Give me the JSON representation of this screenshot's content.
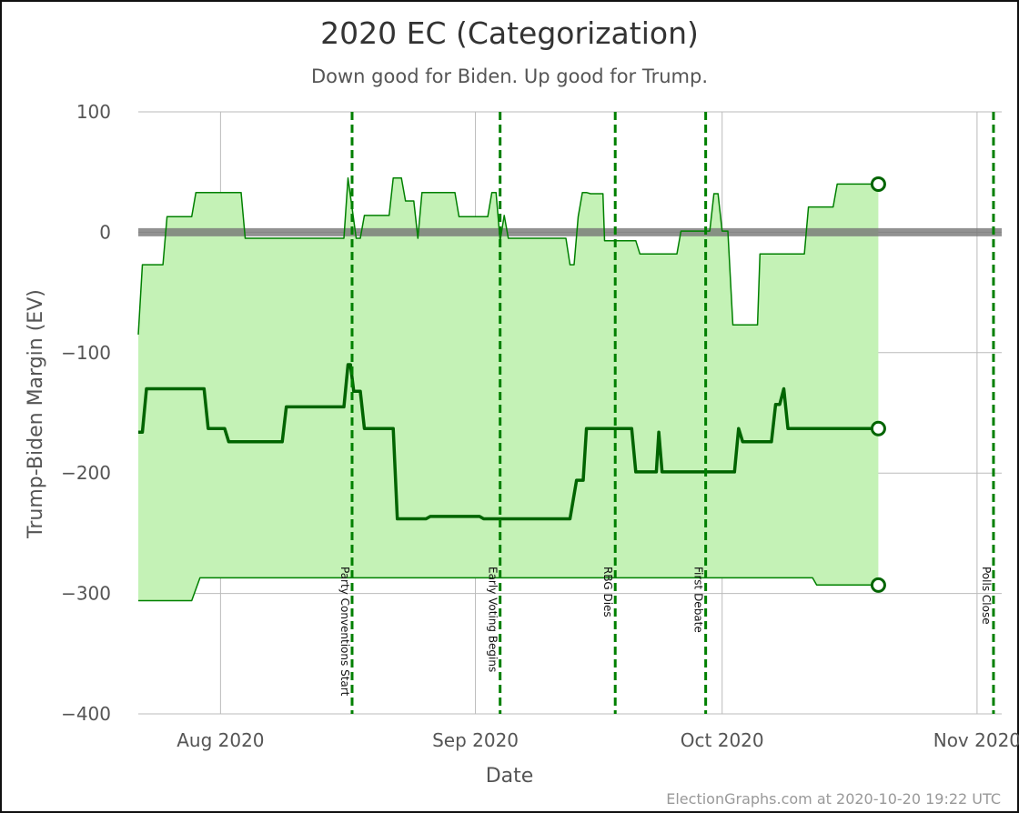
{
  "chart_data": {
    "type": "line",
    "title": "2020 EC (Categorization)",
    "subtitle": "Down good for Biden. Up good for Trump.",
    "xlabel": "Date",
    "ylabel": "Trump-Biden Margin (EV)",
    "ylim": [
      -400,
      100
    ],
    "xlim": [
      "2020-07-22",
      "2020-11-04"
    ],
    "y_ticks": [
      {
        "value": 100,
        "label": "100"
      },
      {
        "value": 0,
        "label": "0"
      },
      {
        "value": -100,
        "label": "-100"
      },
      {
        "value": -200,
        "label": "-200"
      },
      {
        "value": -300,
        "label": "-300"
      },
      {
        "value": -400,
        "label": "-400"
      }
    ],
    "x_ticks": [
      {
        "date": "2020-08-01",
        "label": "Aug 2020"
      },
      {
        "date": "2020-09-01",
        "label": "Sep 2020"
      },
      {
        "date": "2020-10-01",
        "label": "Oct 2020"
      },
      {
        "date": "2020-11-01",
        "label": "Nov 2020"
      }
    ],
    "grid": true,
    "zero_line": 0,
    "events": [
      {
        "date": "2020-08-17",
        "label": "Party Conventions Start"
      },
      {
        "date": "2020-09-04",
        "label": "Early Voting Begins"
      },
      {
        "date": "2020-09-18",
        "label": "RBG Dies"
      },
      {
        "date": "2020-09-29",
        "label": "First Debate"
      },
      {
        "date": "2020-11-03",
        "label": "Polls Close"
      }
    ],
    "series": [
      {
        "role": "upper",
        "points": [
          [
            "2020-07-22",
            -85
          ],
          [
            "2020-07-22.5",
            -27
          ],
          [
            "2020-07-25",
            -27
          ],
          [
            "2020-07-25.5",
            13
          ],
          [
            "2020-07-28.5",
            13
          ],
          [
            "2020-07-29",
            33
          ],
          [
            "2020-08-03.5",
            33
          ],
          [
            "2020-08-04",
            -5
          ],
          [
            "2020-08-16",
            -5
          ],
          [
            "2020-08-16.5",
            45
          ],
          [
            "2020-08-17",
            20
          ],
          [
            "2020-08-17.5",
            -5
          ],
          [
            "2020-08-18",
            -5
          ],
          [
            "2020-08-18.5",
            14
          ],
          [
            "2020-08-21.5",
            14
          ],
          [
            "2020-08-22",
            45
          ],
          [
            "2020-08-23",
            45
          ],
          [
            "2020-08-23.5",
            26
          ],
          [
            "2020-08-24.5",
            26
          ],
          [
            "2020-08-25",
            -5
          ],
          [
            "2020-08-25.5",
            33
          ],
          [
            "2020-08-29.5",
            33
          ],
          [
            "2020-08-30",
            13
          ],
          [
            "2020-09-02.5",
            13
          ],
          [
            "2020-09-03",
            33
          ],
          [
            "2020-09-03.5",
            33
          ],
          [
            "2020-09-04",
            -7
          ],
          [
            "2020-09-04.5",
            14
          ],
          [
            "2020-09-05",
            -5
          ],
          [
            "2020-09-12",
            -5
          ],
          [
            "2020-09-12.5",
            -27
          ],
          [
            "2020-09-13",
            -27
          ],
          [
            "2020-09-13.5",
            13
          ],
          [
            "2020-09-14",
            33
          ],
          [
            "2020-09-14.5",
            33
          ],
          [
            "2020-09-15",
            32
          ],
          [
            "2020-09-16.5",
            32
          ],
          [
            "2020-09-16.7",
            -7
          ],
          [
            "2020-09-20.5",
            -7
          ],
          [
            "2020-09-21",
            -18
          ],
          [
            "2020-09-25.5",
            -18
          ],
          [
            "2020-09-26",
            1
          ],
          [
            "2020-09-29.5",
            1
          ],
          [
            "2020-09-30",
            32
          ],
          [
            "2020-09-30.5",
            32
          ],
          [
            "2020-10-01",
            1
          ],
          [
            "2020-10-01.7",
            1
          ],
          [
            "2020-10-02.3",
            -77
          ],
          [
            "2020-10-05.3",
            -77
          ],
          [
            "2020-10-05.6",
            -18
          ],
          [
            "2020-10-11",
            -18
          ],
          [
            "2020-10-11.5",
            21
          ],
          [
            "2020-10-14.5",
            21
          ],
          [
            "2020-10-15",
            40
          ],
          [
            "2020-10-20",
            40
          ]
        ]
      },
      {
        "role": "median",
        "points": [
          [
            "2020-07-22",
            -166
          ],
          [
            "2020-07-22.5",
            -166
          ],
          [
            "2020-07-23",
            -130
          ],
          [
            "2020-07-30",
            -130
          ],
          [
            "2020-07-30.5",
            -163
          ],
          [
            "2020-08-01.5",
            -163
          ],
          [
            "2020-08-02",
            -174
          ],
          [
            "2020-08-08.5",
            -174
          ],
          [
            "2020-08-09",
            -145
          ],
          [
            "2020-08-16",
            -145
          ],
          [
            "2020-08-16.5",
            -110
          ],
          [
            "2020-08-16.8",
            -110
          ],
          [
            "2020-08-17.2",
            -132
          ],
          [
            "2020-08-18",
            -132
          ],
          [
            "2020-08-18.5",
            -163
          ],
          [
            "2020-08-22",
            -163
          ],
          [
            "2020-08-22.5",
            -238
          ],
          [
            "2020-08-26",
            -238
          ],
          [
            "2020-08-26.5",
            -236
          ],
          [
            "2020-09-01.5",
            -236
          ],
          [
            "2020-09-02",
            -238
          ],
          [
            "2020-09-12.5",
            -238
          ],
          [
            "2020-09-13.3",
            -206
          ],
          [
            "2020-09-14.1",
            -206
          ],
          [
            "2020-09-14.5",
            -163
          ],
          [
            "2020-09-20",
            -163
          ],
          [
            "2020-09-20.5",
            -199
          ],
          [
            "2020-09-23",
            -199
          ],
          [
            "2020-09-23.3",
            -166
          ],
          [
            "2020-09-23.7",
            -199
          ],
          [
            "2020-10-02.5",
            -199
          ],
          [
            "2020-10-03",
            -163
          ],
          [
            "2020-10-03.5",
            -174
          ],
          [
            "2020-10-07",
            -174
          ],
          [
            "2020-10-07.5",
            -143
          ],
          [
            "2020-10-08",
            -143
          ],
          [
            "2020-10-08.5",
            -130
          ],
          [
            "2020-10-09",
            -163
          ],
          [
            "2020-10-20",
            -163
          ]
        ]
      },
      {
        "role": "lower",
        "points": [
          [
            "2020-07-22",
            -306
          ],
          [
            "2020-07-28.5",
            -306
          ],
          [
            "2020-07-29.5",
            -287
          ],
          [
            "2020-10-12",
            -287
          ],
          [
            "2020-10-12.5",
            -293
          ],
          [
            "2020-10-20",
            -293
          ]
        ]
      }
    ],
    "end_markers": [
      40,
      -163,
      -293
    ],
    "colors": {
      "band_fill": "#c4f2b6",
      "line": "#008000",
      "median": "#006400",
      "event": "#008000",
      "zero": "#777777",
      "grid": "#bbbbbb"
    }
  },
  "footer": {
    "credit": "ElectionGraphs.com at 2020-10-20 19:22 UTC"
  }
}
